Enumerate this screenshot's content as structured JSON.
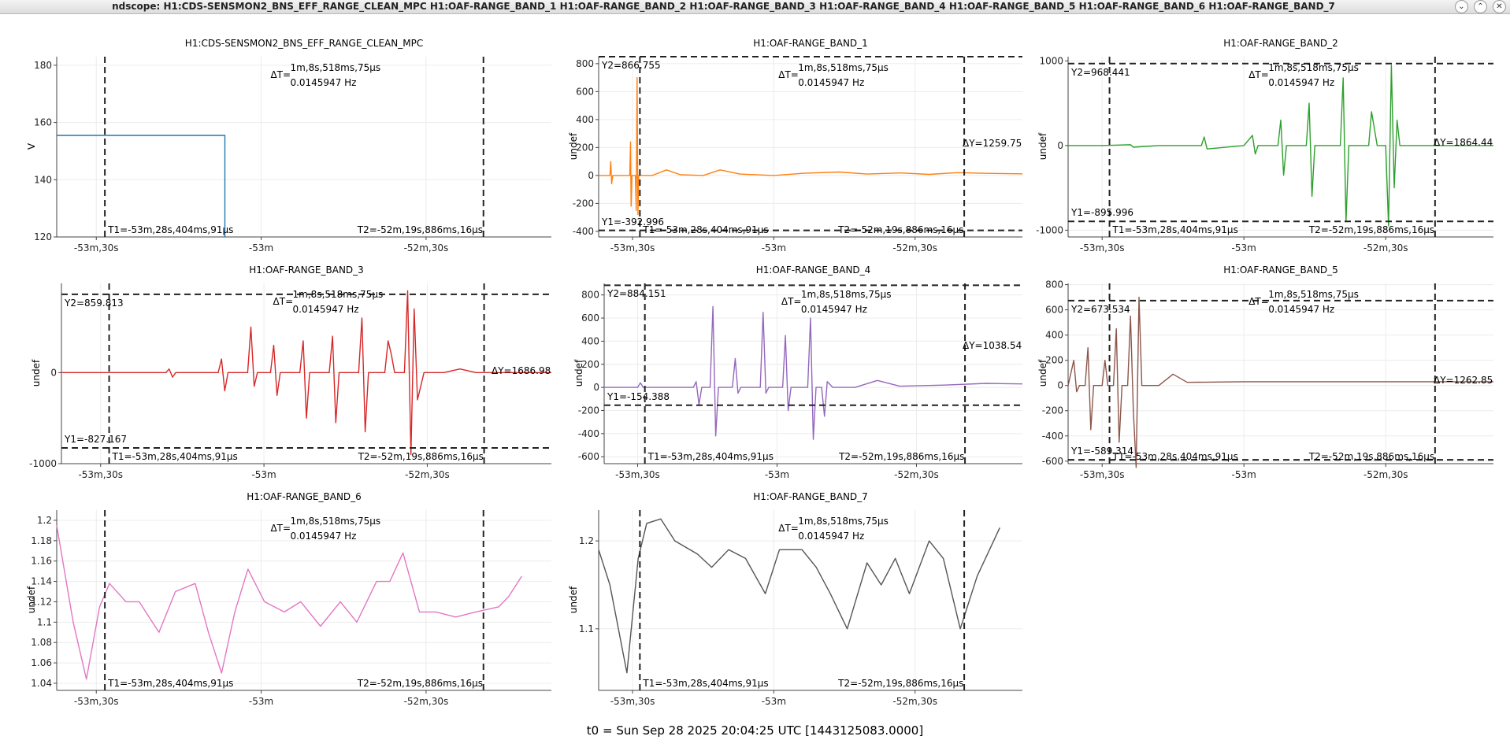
{
  "window": {
    "title": "ndscope: H1:CDS-SENSMON2_BNS_EFF_RANGE_CLEAN_MPC H1:OAF-RANGE_BAND_1 H1:OAF-RANGE_BAND_2 H1:OAF-RANGE_BAND_3 H1:OAF-RANGE_BAND_4 H1:OAF-RANGE_BAND_5 H1:OAF-RANGE_BAND_6 H1:OAF-RANGE_BAND_7",
    "buttons": [
      "⌄",
      "⌃",
      "✕"
    ]
  },
  "cursors": {
    "dt": "ΔT=",
    "dt_value": "1m,8s,518ms,75μs",
    "dt_freq": "0.0145947 Hz",
    "t1": "T1=-53m,28s,404ms,91μs",
    "t2": "T2=-52m,19s,886ms,16μs"
  },
  "x_ticks": [
    "-53m,30s",
    "-53m",
    "-52m,30s"
  ],
  "footer": "t0 = Sun Sep 28 2025 20:04:25 UTC [1443125083.0000]",
  "plots": [
    {
      "title": "H1:CDS-SENSMON2_BNS_EFF_RANGE_CLEAN_MPC",
      "ylabel": "V",
      "color": "#1f77b4",
      "ylim": [
        120,
        183
      ],
      "yticks": [
        "120",
        "140",
        "160",
        "180"
      ],
      "ytick_values": [
        120,
        140,
        160,
        180
      ],
      "series": [
        [
          -53.62,
          155.5
        ],
        [
          -53.11,
          155.5
        ],
        [
          -53.11,
          120
        ]
      ]
    },
    {
      "title": "H1:OAF-RANGE_BAND_1",
      "ylabel": "undef",
      "color": "#ff7f0e",
      "ylim": [
        -440,
        850
      ],
      "yticks": [
        "-400",
        "-200",
        "0",
        "200",
        "400",
        "600",
        "800"
      ],
      "ytick_values": [
        -400,
        -200,
        0,
        200,
        400,
        600,
        800
      ],
      "y1": "Y1=-392.996",
      "y2": "Y2=866.755",
      "dy": "ΔY=1259.75",
      "y1_value": -392.996,
      "y2_value": 866.755,
      "series": [
        [
          -53.62,
          0
        ],
        [
          -53.58,
          0
        ],
        [
          -53.577,
          100
        ],
        [
          -53.574,
          -60
        ],
        [
          -53.57,
          0
        ],
        [
          -53.51,
          0
        ],
        [
          -53.507,
          240
        ],
        [
          -53.505,
          -220
        ],
        [
          -53.502,
          0
        ],
        [
          -53.49,
          0
        ],
        [
          -53.487,
          -250
        ],
        [
          -53.484,
          700
        ],
        [
          -53.481,
          -280
        ],
        [
          -53.478,
          0
        ],
        [
          -53.43,
          0
        ],
        [
          -53.38,
          40
        ],
        [
          -53.33,
          5
        ],
        [
          -53.25,
          0
        ],
        [
          -53.19,
          40
        ],
        [
          -53.12,
          10
        ],
        [
          -53.0,
          0
        ],
        [
          -52.9,
          15
        ],
        [
          -52.77,
          25
        ],
        [
          -52.67,
          10
        ],
        [
          -52.55,
          18
        ],
        [
          -52.45,
          8
        ],
        [
          -52.35,
          20
        ],
        [
          -52.25,
          15
        ],
        [
          -52.12,
          12
        ]
      ]
    },
    {
      "title": "H1:OAF-RANGE_BAND_2",
      "ylabel": "undef",
      "color": "#2ca02c",
      "ylim": [
        -1080,
        1050
      ],
      "yticks": [
        "-1000",
        "0",
        "1000"
      ],
      "ytick_values": [
        -1000,
        0,
        1000
      ],
      "y1": "Y1=-895.996",
      "y2": "Y2=968.441",
      "dy": "ΔY=1864.44",
      "y1_value": -895.996,
      "y2_value": 968.441,
      "series": [
        [
          -53.62,
          0
        ],
        [
          -53.5,
          0
        ],
        [
          -53.4,
          10
        ],
        [
          -53.39,
          -20
        ],
        [
          -53.3,
          0
        ],
        [
          -53.15,
          0
        ],
        [
          -53.14,
          100
        ],
        [
          -53.13,
          -40
        ],
        [
          -53.0,
          0
        ],
        [
          -52.97,
          120
        ],
        [
          -52.96,
          -100
        ],
        [
          -52.95,
          0
        ],
        [
          -52.88,
          0
        ],
        [
          -52.87,
          300
        ],
        [
          -52.86,
          -350
        ],
        [
          -52.85,
          0
        ],
        [
          -52.78,
          0
        ],
        [
          -52.77,
          500
        ],
        [
          -52.76,
          -600
        ],
        [
          -52.75,
          0
        ],
        [
          -52.66,
          0
        ],
        [
          -52.65,
          800
        ],
        [
          -52.64,
          -900
        ],
        [
          -52.63,
          0
        ],
        [
          -52.56,
          0
        ],
        [
          -52.55,
          400
        ],
        [
          -52.54,
          200
        ],
        [
          -52.53,
          0
        ],
        [
          -52.5,
          0
        ],
        [
          -52.49,
          -950
        ],
        [
          -52.48,
          950
        ],
        [
          -52.47,
          -500
        ],
        [
          -52.46,
          300
        ],
        [
          -52.45,
          0
        ],
        [
          -52.12,
          0
        ]
      ]
    },
    {
      "title": "H1:OAF-RANGE_BAND_3",
      "ylabel": "undef",
      "color": "#d62728",
      "ylim": [
        -1000,
        980
      ],
      "yticks": [
        "-1000",
        "0"
      ],
      "ytick_values": [
        -1000,
        0
      ],
      "y1": "Y1=-827.167",
      "y2": "Y2=859.813",
      "dy": "ΔY=1686.98",
      "y1_value": -827.167,
      "y2_value": 859.813,
      "series": [
        [
          -53.62,
          0
        ],
        [
          -53.3,
          0
        ],
        [
          -53.29,
          40
        ],
        [
          -53.28,
          -50
        ],
        [
          -53.27,
          0
        ],
        [
          -53.14,
          0
        ],
        [
          -53.13,
          150
        ],
        [
          -53.12,
          -200
        ],
        [
          -53.11,
          0
        ],
        [
          -53.05,
          0
        ],
        [
          -53.04,
          500
        ],
        [
          -53.03,
          -150
        ],
        [
          -53.02,
          0
        ],
        [
          -52.98,
          0
        ],
        [
          -52.97,
          300
        ],
        [
          -52.96,
          -250
        ],
        [
          -52.95,
          0
        ],
        [
          -52.89,
          0
        ],
        [
          -52.88,
          350
        ],
        [
          -52.87,
          -500
        ],
        [
          -52.86,
          0
        ],
        [
          -52.8,
          0
        ],
        [
          -52.79,
          400
        ],
        [
          -52.78,
          -550
        ],
        [
          -52.77,
          0
        ],
        [
          -52.71,
          0
        ],
        [
          -52.7,
          600
        ],
        [
          -52.69,
          -650
        ],
        [
          -52.68,
          0
        ],
        [
          -52.63,
          0
        ],
        [
          -52.62,
          350
        ],
        [
          -52.61,
          200
        ],
        [
          -52.6,
          0
        ],
        [
          -52.57,
          0
        ],
        [
          -52.56,
          900
        ],
        [
          -52.55,
          -900
        ],
        [
          -52.54,
          700
        ],
        [
          -52.53,
          -300
        ],
        [
          -52.51,
          0
        ],
        [
          -52.45,
          0
        ],
        [
          -52.4,
          40
        ],
        [
          -52.35,
          0
        ],
        [
          -52.12,
          0
        ]
      ]
    },
    {
      "title": "H1:OAF-RANGE_BAND_4",
      "ylabel": "undef",
      "color": "#9467bd",
      "ylim": [
        -660,
        900
      ],
      "yticks": [
        "-600",
        "-400",
        "-200",
        "0",
        "200",
        "400",
        "600",
        "800"
      ],
      "ytick_values": [
        -600,
        -400,
        -200,
        0,
        200,
        400,
        600,
        800
      ],
      "y1": "Y1=-154.388",
      "y2": "Y2=884.151",
      "dy": "ΔY=1038.54",
      "y1_value": -154.388,
      "y2_value": 884.151,
      "series": [
        [
          -53.62,
          0
        ],
        [
          -53.5,
          0
        ],
        [
          -53.49,
          40
        ],
        [
          -53.48,
          0
        ],
        [
          -53.3,
          0
        ],
        [
          -53.29,
          50
        ],
        [
          -53.28,
          -150
        ],
        [
          -53.27,
          0
        ],
        [
          -53.24,
          0
        ],
        [
          -53.23,
          700
        ],
        [
          -53.22,
          -420
        ],
        [
          -53.21,
          0
        ],
        [
          -53.16,
          0
        ],
        [
          -53.15,
          250
        ],
        [
          -53.14,
          -50
        ],
        [
          -53.13,
          0
        ],
        [
          -53.06,
          0
        ],
        [
          -53.05,
          650
        ],
        [
          -53.04,
          -50
        ],
        [
          -53.03,
          0
        ],
        [
          -52.98,
          0
        ],
        [
          -52.97,
          450
        ],
        [
          -52.96,
          -200
        ],
        [
          -52.95,
          0
        ],
        [
          -52.89,
          0
        ],
        [
          -52.88,
          600
        ],
        [
          -52.87,
          -450
        ],
        [
          -52.86,
          0
        ],
        [
          -52.84,
          0
        ],
        [
          -52.83,
          -250
        ],
        [
          -52.82,
          50
        ],
        [
          -52.8,
          0
        ],
        [
          -52.72,
          0
        ],
        [
          -52.64,
          60
        ],
        [
          -52.56,
          10
        ],
        [
          -52.4,
          20
        ],
        [
          -52.25,
          35
        ],
        [
          -52.12,
          30
        ]
      ]
    },
    {
      "title": "H1:OAF-RANGE_BAND_5",
      "ylabel": "undef",
      "color": "#8c564b",
      "ylim": [
        -620,
        810
      ],
      "yticks": [
        "-600",
        "-400",
        "-200",
        "0",
        "200",
        "400",
        "600",
        "800"
      ],
      "ytick_values": [
        -600,
        -400,
        -200,
        0,
        200,
        400,
        600,
        800
      ],
      "y1": "Y1=-589.314",
      "y2": "Y2=673.534",
      "dy": "ΔY=1262.85",
      "y1_value": -589.314,
      "y2_value": 673.534,
      "series": [
        [
          -53.62,
          0
        ],
        [
          -53.6,
          200
        ],
        [
          -53.59,
          -50
        ],
        [
          -53.58,
          0
        ],
        [
          -53.56,
          0
        ],
        [
          -53.55,
          300
        ],
        [
          -53.54,
          -350
        ],
        [
          -53.53,
          0
        ],
        [
          -53.5,
          0
        ],
        [
          -53.49,
          200
        ],
        [
          -53.48,
          0
        ],
        [
          -53.46,
          0
        ],
        [
          -53.45,
          450
        ],
        [
          -53.44,
          -450
        ],
        [
          -53.43,
          0
        ],
        [
          -53.41,
          0
        ],
        [
          -53.4,
          550
        ],
        [
          -53.39,
          -200
        ],
        [
          -53.38,
          -650
        ],
        [
          -53.37,
          700
        ],
        [
          -53.36,
          0
        ],
        [
          -53.3,
          0
        ],
        [
          -53.25,
          90
        ],
        [
          -53.2,
          25
        ],
        [
          -53.0,
          30
        ],
        [
          -52.8,
          30
        ],
        [
          -52.5,
          30
        ],
        [
          -52.12,
          30
        ]
      ]
    },
    {
      "title": "H1:OAF-RANGE_BAND_6",
      "ylabel": "undef",
      "color": "#e377c2",
      "ylim": [
        1.033,
        1.21
      ],
      "yticks": [
        "1.04",
        "1.06",
        "1.08",
        "1.1",
        "1.12",
        "1.14",
        "1.16",
        "1.18",
        "1.2"
      ],
      "ytick_values": [
        1.04,
        1.06,
        1.08,
        1.1,
        1.12,
        1.14,
        1.16,
        1.18,
        1.2
      ],
      "series": [
        [
          -53.62,
          1.195
        ],
        [
          -53.57,
          1.1
        ],
        [
          -53.53,
          1.044
        ],
        [
          -53.49,
          1.115
        ],
        [
          -53.46,
          1.138
        ],
        [
          -53.41,
          1.12
        ],
        [
          -53.37,
          1.12
        ],
        [
          -53.31,
          1.09
        ],
        [
          -53.26,
          1.13
        ],
        [
          -53.2,
          1.138
        ],
        [
          -53.16,
          1.09
        ],
        [
          -53.12,
          1.05
        ],
        [
          -53.08,
          1.11
        ],
        [
          -53.04,
          1.152
        ],
        [
          -52.99,
          1.12
        ],
        [
          -52.93,
          1.11
        ],
        [
          -52.88,
          1.12
        ],
        [
          -52.82,
          1.096
        ],
        [
          -52.76,
          1.12
        ],
        [
          -52.71,
          1.1
        ],
        [
          -52.65,
          1.14
        ],
        [
          -52.61,
          1.14
        ],
        [
          -52.57,
          1.168
        ],
        [
          -52.52,
          1.11
        ],
        [
          -52.47,
          1.11
        ],
        [
          -52.41,
          1.105
        ],
        [
          -52.35,
          1.11
        ],
        [
          -52.28,
          1.115
        ],
        [
          -52.25,
          1.125
        ],
        [
          -52.21,
          1.145
        ]
      ]
    },
    {
      "title": "H1:OAF-RANGE_BAND_7",
      "ylabel": "undef",
      "color": "#555555",
      "ylim": [
        1.03,
        1.235
      ],
      "yticks": [
        "1.1",
        "1.2"
      ],
      "ytick_values": [
        1.1,
        1.2
      ],
      "series": [
        [
          -53.62,
          1.19
        ],
        [
          -53.58,
          1.15
        ],
        [
          -53.52,
          1.05
        ],
        [
          -53.48,
          1.18
        ],
        [
          -53.45,
          1.22
        ],
        [
          -53.4,
          1.225
        ],
        [
          -53.35,
          1.2
        ],
        [
          -53.27,
          1.185
        ],
        [
          -53.22,
          1.17
        ],
        [
          -53.16,
          1.19
        ],
        [
          -53.1,
          1.18
        ],
        [
          -53.03,
          1.14
        ],
        [
          -52.98,
          1.19
        ],
        [
          -52.9,
          1.19
        ],
        [
          -52.85,
          1.17
        ],
        [
          -52.8,
          1.14
        ],
        [
          -52.74,
          1.1
        ],
        [
          -52.67,
          1.175
        ],
        [
          -52.62,
          1.15
        ],
        [
          -52.57,
          1.18
        ],
        [
          -52.52,
          1.14
        ],
        [
          -52.45,
          1.2
        ],
        [
          -52.4,
          1.18
        ],
        [
          -52.34,
          1.1
        ],
        [
          -52.28,
          1.16
        ],
        [
          -52.2,
          1.215
        ]
      ]
    }
  ]
}
